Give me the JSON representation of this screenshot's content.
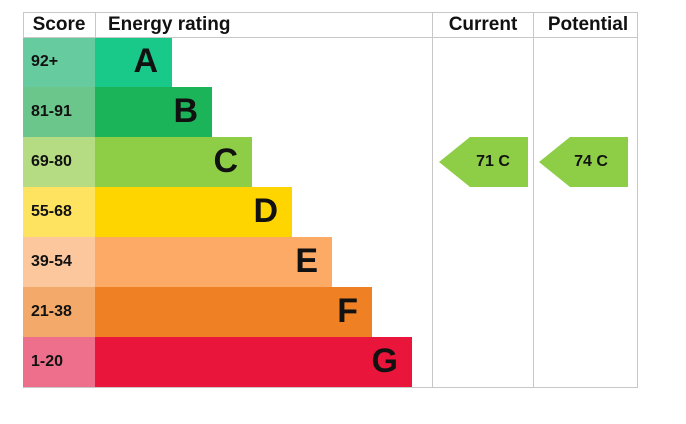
{
  "header": {
    "score": "Score",
    "rating": "Energy rating",
    "current": "Current",
    "potential": "Potential"
  },
  "bands": [
    {
      "score": "92+",
      "letter": "A",
      "color": "#19c98a",
      "score_color": "#66cc9f"
    },
    {
      "score": "81-91",
      "letter": "B",
      "color": "#1cb459",
      "score_color": "#6bc68b"
    },
    {
      "score": "69-80",
      "letter": "C",
      "color": "#8dce46",
      "score_color": "#b6dc83"
    },
    {
      "score": "55-68",
      "letter": "D",
      "color": "#ffd500",
      "score_color": "#fde35f"
    },
    {
      "score": "39-54",
      "letter": "E",
      "color": "#fcaa65",
      "score_color": "#fcc79c"
    },
    {
      "score": "21-38",
      "letter": "F",
      "color": "#ef8023",
      "score_color": "#f3a96a"
    },
    {
      "score": "1-20",
      "letter": "G",
      "color": "#e9153b",
      "score_color": "#ee6f8c"
    }
  ],
  "current": {
    "label": "71 C",
    "color": "#8dce46"
  },
  "potential": {
    "label": "74 C",
    "color": "#8dce46"
  }
}
